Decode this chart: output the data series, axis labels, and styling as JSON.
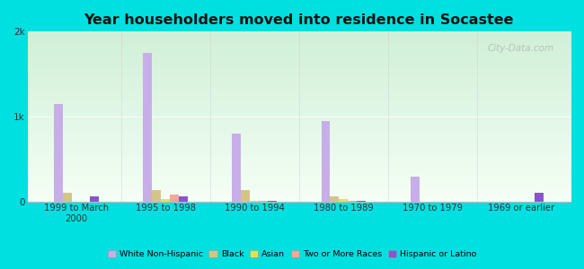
{
  "title": "Year householders moved into residence in Socastee",
  "categories": [
    "1999 to March\n2000",
    "1995 to 1998",
    "1990 to 1994",
    "1980 to 1989",
    "1970 to 1979",
    "1969 or earlier"
  ],
  "series": {
    "White Non-Hispanic": [
      1150,
      1750,
      800,
      950,
      290,
      0
    ],
    "Black": [
      100,
      130,
      130,
      60,
      0,
      0
    ],
    "Asian": [
      0,
      30,
      10,
      25,
      0,
      0
    ],
    "Two or More Races": [
      0,
      80,
      10,
      10,
      0,
      0
    ],
    "Hispanic or Latino": [
      60,
      60,
      10,
      10,
      0,
      100
    ]
  },
  "colors": {
    "White Non-Hispanic": "#c8aee8",
    "Black": "#d4c48a",
    "Asian": "#e0e060",
    "Two or More Races": "#f0a898",
    "Hispanic or Latino": "#8855cc"
  },
  "ylim": [
    0,
    2000
  ],
  "yticks": [
    0,
    1000,
    2000
  ],
  "ytick_labels": [
    "0",
    "1k",
    "2k"
  ],
  "outer_bg": "#00e0e0",
  "plot_bg_top": "#f5fff5",
  "plot_bg_bottom": "#d0f0d8",
  "watermark": "City-Data.com"
}
